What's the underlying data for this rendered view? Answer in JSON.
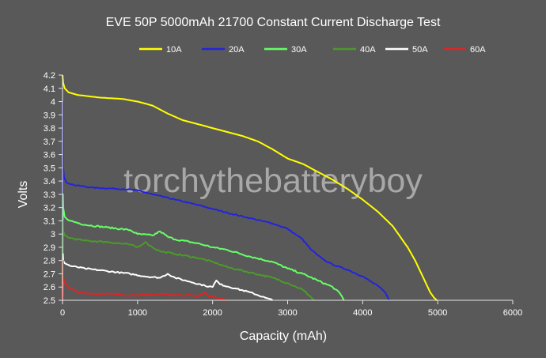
{
  "chart_data": {
    "type": "line",
    "title": "EVE 50P 5000mAh 21700 Constant Current Discharge Test",
    "xlabel": "Capacity (mAh)",
    "ylabel": "Volts",
    "xlim": [
      0,
      6000
    ],
    "ylim": [
      2.5,
      4.2
    ],
    "x_ticks": [
      "0",
      "1000",
      "2000",
      "3000",
      "4000",
      "5000",
      "6000"
    ],
    "y_ticks": [
      "2.5",
      "2.6",
      "2.7",
      "2.8",
      "2.9",
      "3",
      "3.1",
      "3.2",
      "3.3",
      "3.4",
      "3.5",
      "3.6",
      "3.7",
      "3.8",
      "3.9",
      "4",
      "4.1",
      "4.2"
    ],
    "grid": false,
    "legend_position": "top-center",
    "watermark": "torchythebatteryboy",
    "series": [
      {
        "name": "10A",
        "color": "#ffff00",
        "x": [
          0,
          10,
          30,
          80,
          200,
          500,
          800,
          1000,
          1200,
          1400,
          1600,
          1800,
          2000,
          2200,
          2400,
          2600,
          2800,
          3000,
          3200,
          3400,
          3600,
          3800,
          4000,
          4200,
          4400,
          4600,
          4700,
          4800,
          4900,
          4950,
          4990
        ],
        "y": [
          4.2,
          4.14,
          4.1,
          4.07,
          4.05,
          4.03,
          4.02,
          4.0,
          3.97,
          3.91,
          3.86,
          3.83,
          3.8,
          3.77,
          3.74,
          3.7,
          3.64,
          3.57,
          3.53,
          3.47,
          3.41,
          3.34,
          3.26,
          3.17,
          3.06,
          2.9,
          2.8,
          2.68,
          2.56,
          2.52,
          2.5
        ]
      },
      {
        "name": "20A",
        "color": "#2323e0",
        "x": [
          0,
          5,
          10,
          20,
          50,
          150,
          400,
          800,
          1000,
          1200,
          1500,
          1800,
          2000,
          2200,
          2500,
          2800,
          3000,
          3100,
          3200,
          3300,
          3400,
          3500,
          3600,
          3800,
          4000,
          4200,
          4300,
          4350
        ],
        "y": [
          2.5,
          4.0,
          3.5,
          3.43,
          3.39,
          3.37,
          3.35,
          3.34,
          3.33,
          3.3,
          3.26,
          3.22,
          3.19,
          3.16,
          3.12,
          3.08,
          3.04,
          3.0,
          2.96,
          2.89,
          2.84,
          2.8,
          2.77,
          2.73,
          2.68,
          2.61,
          2.56,
          2.5
        ]
      },
      {
        "name": "30A",
        "color": "#66ff66",
        "x": [
          0,
          5,
          10,
          30,
          100,
          300,
          600,
          900,
          1000,
          1200,
          1300,
          1400,
          1500,
          1800,
          2000,
          2200,
          2500,
          2800,
          3000,
          3200,
          3400,
          3600,
          3700,
          3750
        ],
        "y": [
          2.5,
          3.3,
          3.2,
          3.13,
          3.1,
          3.07,
          3.05,
          3.03,
          3.0,
          2.99,
          3.02,
          2.98,
          2.96,
          2.93,
          2.9,
          2.88,
          2.83,
          2.79,
          2.74,
          2.7,
          2.65,
          2.6,
          2.55,
          2.5
        ]
      },
      {
        "name": "40A",
        "color": "#4c9a2a",
        "x": [
          0,
          5,
          10,
          30,
          100,
          300,
          600,
          900,
          1000,
          1100,
          1200,
          1300,
          1500,
          1800,
          2000,
          2200,
          2500,
          2800,
          3000,
          3200,
          3300,
          3350
        ],
        "y": [
          2.5,
          3.1,
          3.02,
          2.99,
          2.97,
          2.95,
          2.94,
          2.92,
          2.9,
          2.94,
          2.9,
          2.87,
          2.85,
          2.82,
          2.79,
          2.75,
          2.71,
          2.67,
          2.63,
          2.58,
          2.53,
          2.5
        ]
      },
      {
        "name": "50A",
        "color": "#ffffff",
        "x": [
          0,
          5,
          10,
          30,
          100,
          300,
          600,
          900,
          1100,
          1300,
          1400,
          1500,
          1700,
          1900,
          2000,
          2050,
          2100,
          2300,
          2500,
          2700,
          2800
        ],
        "y": [
          2.5,
          2.85,
          2.8,
          2.78,
          2.76,
          2.74,
          2.72,
          2.7,
          2.68,
          2.67,
          2.7,
          2.67,
          2.64,
          2.61,
          2.6,
          2.65,
          2.62,
          2.59,
          2.56,
          2.52,
          2.5
        ]
      },
      {
        "name": "60A",
        "color": "#e02424",
        "x": [
          0,
          5,
          10,
          30,
          100,
          200,
          400,
          600,
          800,
          1000,
          1200,
          1300,
          1400,
          1500,
          1700,
          1800,
          1900,
          1950,
          2000,
          2100,
          2200
        ],
        "y": [
          2.5,
          2.8,
          2.67,
          2.63,
          2.59,
          2.56,
          2.55,
          2.55,
          2.54,
          2.54,
          2.54,
          2.55,
          2.54,
          2.54,
          2.54,
          2.53,
          2.56,
          2.53,
          2.53,
          2.51,
          2.5
        ]
      }
    ]
  }
}
